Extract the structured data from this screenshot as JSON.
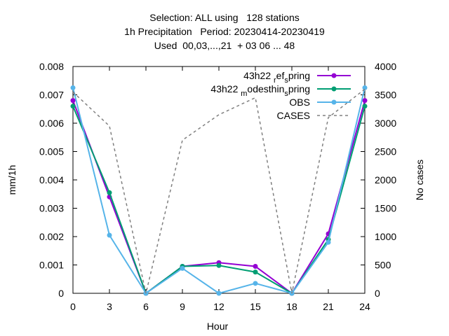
{
  "chart_data": {
    "type": "line",
    "title_lines": [
      "Selection: ALL using   128 stations",
      "1h Precipitation   Period: 20230414-20230419",
      "Used  00,03,...,21  + 03 06 ... 48"
    ],
    "xlabel": "Hour",
    "ylabel": "mm/1h",
    "y2label": "No cases",
    "xlim": [
      0,
      24
    ],
    "ylim": [
      0,
      0.008
    ],
    "y2lim": [
      0,
      4000
    ],
    "x_ticks": [
      "0",
      "3",
      "6",
      "9",
      "12",
      "15",
      "18",
      "21",
      "24"
    ],
    "y_ticks": [
      "0",
      "0.001",
      "0.002",
      "0.003",
      "0.004",
      "0.005",
      "0.006",
      "0.007",
      "0.008"
    ],
    "y2_ticks": [
      "0",
      "500",
      "1000",
      "1500",
      "2000",
      "2500",
      "3000",
      "3500",
      "4000"
    ],
    "grid": false,
    "legend_position": "top-right",
    "x": [
      0,
      3,
      6,
      9,
      12,
      15,
      18,
      21,
      24
    ],
    "series": [
      {
        "name": "43h22 ref s pring",
        "legend_main": "43h22 ",
        "legend_sub1": "r",
        "legend_mid": "ef",
        "legend_sub2": "s",
        "legend_tail": "pring",
        "color": "#9400d3",
        "axis": "y1",
        "dash": false,
        "values": [
          0.0068,
          0.0034,
          0.0,
          0.00095,
          0.00108,
          0.00095,
          0.0,
          0.0021,
          0.0068
        ]
      },
      {
        "name": "43h22 modesthin s pring",
        "legend_main": "43h22 ",
        "legend_sub1": "m",
        "legend_mid": "odesthin",
        "legend_sub2": "s",
        "legend_tail": "pring",
        "color": "#009e73",
        "axis": "y1",
        "dash": false,
        "values": [
          0.0066,
          0.00355,
          0.0,
          0.00095,
          0.00098,
          0.00075,
          0.0,
          0.0019,
          0.0066
        ]
      },
      {
        "name": "OBS",
        "color": "#56b4e9",
        "axis": "y1",
        "dash": false,
        "values": [
          0.00725,
          0.00205,
          0.0,
          0.00088,
          0.0,
          0.00035,
          0.0,
          0.0018,
          0.00725
        ]
      },
      {
        "name": "CASES",
        "color": "#808080",
        "axis": "y2",
        "dash": true,
        "values": [
          3550,
          2950,
          0,
          2700,
          3150,
          3450,
          0,
          3100,
          3600
        ]
      }
    ]
  }
}
